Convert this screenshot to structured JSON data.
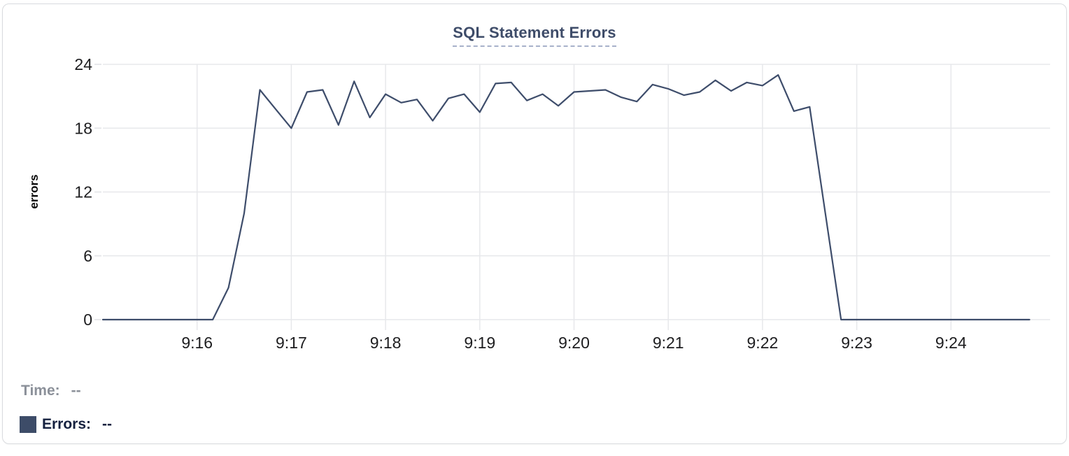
{
  "header": {
    "title": "SQL Statement Errors"
  },
  "chart_data": {
    "type": "line",
    "title": "SQL Statement Errors",
    "xlabel": "",
    "ylabel": "errors",
    "ylim": [
      0,
      24
    ],
    "yticks": [
      0,
      6,
      12,
      18,
      24
    ],
    "x_domain": [
      "9:15:00",
      "9:25:00"
    ],
    "xticks": [
      {
        "label": "9:16",
        "t": "9:16:00"
      },
      {
        "label": "9:17",
        "t": "9:17:00"
      },
      {
        "label": "9:18",
        "t": "9:18:00"
      },
      {
        "label": "9:19",
        "t": "9:19:00"
      },
      {
        "label": "9:20",
        "t": "9:20:00"
      },
      {
        "label": "9:21",
        "t": "9:21:00"
      },
      {
        "label": "9:22",
        "t": "9:22:00"
      },
      {
        "label": "9:23",
        "t": "9:23:00"
      },
      {
        "label": "9:24",
        "t": "9:24:00"
      }
    ],
    "grid": true,
    "legend_position": "bottom-left",
    "series": [
      {
        "name": "Errors",
        "color": "#3e4d6b",
        "points": [
          [
            "9:15:00",
            0
          ],
          [
            "9:15:10",
            0
          ],
          [
            "9:15:20",
            0
          ],
          [
            "9:15:30",
            0
          ],
          [
            "9:15:40",
            0
          ],
          [
            "9:15:50",
            0
          ],
          [
            "9:16:00",
            0
          ],
          [
            "9:16:10",
            0
          ],
          [
            "9:16:20",
            3
          ],
          [
            "9:16:30",
            10
          ],
          [
            "9:16:40",
            21.6
          ],
          [
            "9:16:50",
            19.8
          ],
          [
            "9:17:00",
            18
          ],
          [
            "9:17:10",
            21.4
          ],
          [
            "9:17:20",
            21.6
          ],
          [
            "9:17:30",
            18.3
          ],
          [
            "9:17:40",
            22.4
          ],
          [
            "9:17:50",
            19
          ],
          [
            "9:18:00",
            21.2
          ],
          [
            "9:18:10",
            20.4
          ],
          [
            "9:18:20",
            20.7
          ],
          [
            "9:18:30",
            18.7
          ],
          [
            "9:18:40",
            20.8
          ],
          [
            "9:18:50",
            21.2
          ],
          [
            "9:19:00",
            19.5
          ],
          [
            "9:19:10",
            22.2
          ],
          [
            "9:19:20",
            22.3
          ],
          [
            "9:19:30",
            20.6
          ],
          [
            "9:19:40",
            21.2
          ],
          [
            "9:19:50",
            20.1
          ],
          [
            "9:20:00",
            21.4
          ],
          [
            "9:20:10",
            21.5
          ],
          [
            "9:20:20",
            21.6
          ],
          [
            "9:20:30",
            20.9
          ],
          [
            "9:20:40",
            20.5
          ],
          [
            "9:20:50",
            22.1
          ],
          [
            "9:21:00",
            21.7
          ],
          [
            "9:21:10",
            21.1
          ],
          [
            "9:21:20",
            21.4
          ],
          [
            "9:21:30",
            22.5
          ],
          [
            "9:21:40",
            21.5
          ],
          [
            "9:21:50",
            22.3
          ],
          [
            "9:22:00",
            22.0
          ],
          [
            "9:22:10",
            23.0
          ],
          [
            "9:22:20",
            19.6
          ],
          [
            "9:22:30",
            20.0
          ],
          [
            "9:22:40",
            10
          ],
          [
            "9:22:50",
            0
          ],
          [
            "9:23:00",
            0
          ],
          [
            "9:23:10",
            0
          ],
          [
            "9:23:20",
            0
          ],
          [
            "9:23:30",
            0
          ],
          [
            "9:23:40",
            0
          ],
          [
            "9:23:50",
            0
          ],
          [
            "9:24:00",
            0
          ],
          [
            "9:24:10",
            0
          ],
          [
            "9:24:20",
            0
          ],
          [
            "9:24:30",
            0
          ],
          [
            "9:24:40",
            0
          ],
          [
            "9:24:50",
            0
          ]
        ]
      }
    ]
  },
  "legend": {
    "time_label": "Time:",
    "time_value": "--",
    "errors_label": "Errors:",
    "errors_value": "--",
    "swatch_color": "#3d4c68"
  },
  "colors": {
    "line": "#3e4d6b",
    "grid": "#e7e8eb",
    "tick_text": "#1d1d1f",
    "title": "#3e4c69",
    "title_underline": "#a7b1ca",
    "time_text": "#8b9099",
    "errors_text": "#15213f",
    "card_border": "#d9dbdf"
  }
}
